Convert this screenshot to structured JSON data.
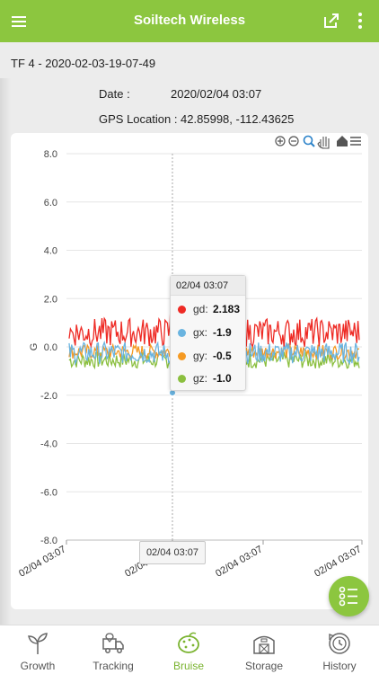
{
  "app_bar": {
    "title": "Soiltech Wireless"
  },
  "record": {
    "title": "TF 4 - 2020-02-03-19-07-49",
    "date_label": "Date :",
    "date_value": "2020/02/04 03:07",
    "gps_label": "GPS Location : 42.85998, -112.43625"
  },
  "colors": {
    "accent": "#8cc63f",
    "gd": "#ee2a24",
    "gx": "#6ab4e0",
    "gy": "#f59a23",
    "gz": "#8bbf3f"
  },
  "chart_data": {
    "type": "line",
    "ylabel": "G",
    "ylim": [
      -8,
      8
    ],
    "yticks": [
      "8.0",
      "6.0",
      "4.0",
      "2.0",
      "0.0",
      "-2.0",
      "-4.0",
      "-6.0",
      "-8.0"
    ],
    "xticks": [
      "02/04 03:07",
      "02/04 03:07",
      "02/04 03:07",
      "02/04 03:07"
    ],
    "grid": true,
    "series": [
      {
        "name": "gd",
        "color": "#ee2a24",
        "range": [
          0.0,
          1.2
        ],
        "spike": 2.183
      },
      {
        "name": "gx",
        "color": "#6ab4e0",
        "range": [
          -0.7,
          0.2
        ],
        "spike": -1.9
      },
      {
        "name": "gy",
        "color": "#f59a23",
        "range": [
          -0.5,
          0.1
        ],
        "spike": -0.5
      },
      {
        "name": "gz",
        "color": "#8bbf3f",
        "range": [
          -0.9,
          -0.2
        ],
        "spike": -1.0
      }
    ]
  },
  "tooltip": {
    "time": "02/04 03:07",
    "rows": [
      {
        "name": "gd:",
        "value": "2.183"
      },
      {
        "name": "gx:",
        "value": "-1.9"
      },
      {
        "name": "gy:",
        "value": "-0.5"
      },
      {
        "name": "gz:",
        "value": "-1.0"
      }
    ]
  },
  "crosshair_label": "02/04 03:07",
  "toolbar_icons": [
    "zoom-in-icon",
    "zoom-out-icon",
    "magnify-icon",
    "pan-hand-icon",
    "home-icon",
    "menu-icon"
  ],
  "nav": [
    {
      "label": "Growth",
      "icon": "sprout-icon"
    },
    {
      "label": "Tracking",
      "icon": "truck-icon"
    },
    {
      "label": "Bruise",
      "icon": "potato-icon"
    },
    {
      "label": "Storage",
      "icon": "barn-icon"
    },
    {
      "label": "History",
      "icon": "history-icon"
    }
  ]
}
